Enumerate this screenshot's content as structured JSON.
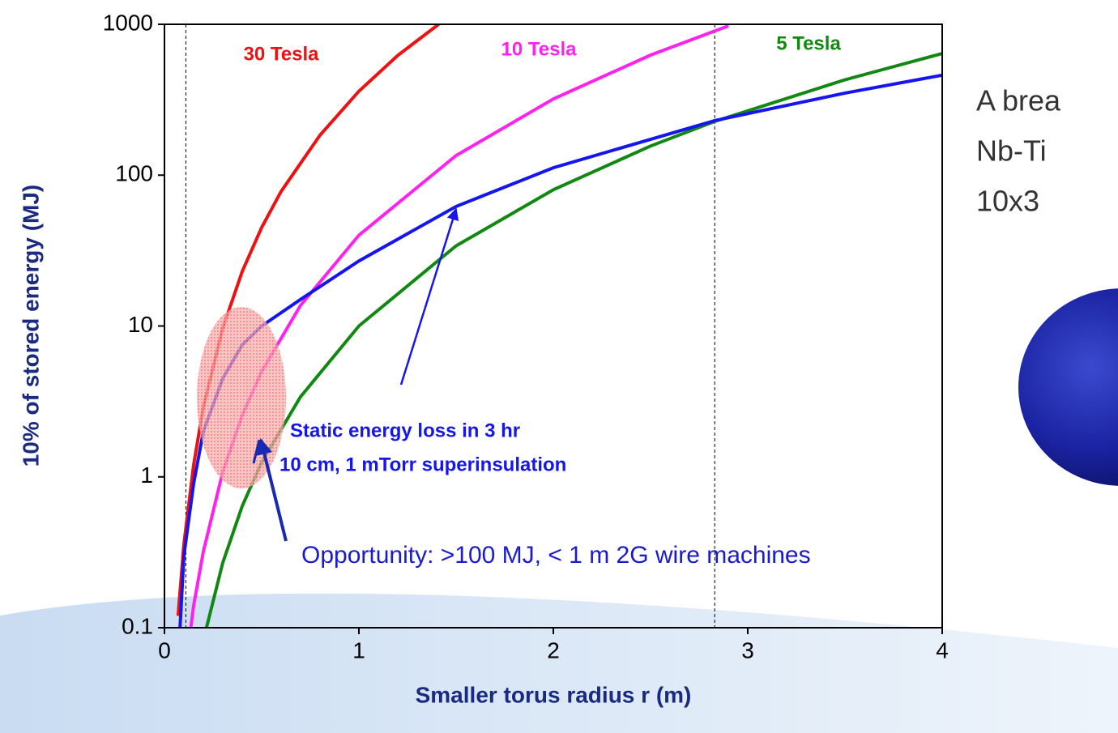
{
  "chart_data": {
    "type": "line",
    "x_label": "Smaller torus radius r (m)",
    "y_label": "10% of stored energy (MJ)",
    "log_y": true,
    "xlim": [
      0,
      4
    ],
    "xticks": [
      0,
      1,
      2,
      3,
      4
    ],
    "ylim": [
      0.1,
      1000
    ],
    "yticks": [
      0.1,
      1,
      10,
      100,
      1000
    ],
    "vlines": [
      0.11,
      2.83
    ],
    "series": [
      {
        "name": "30 Tesla",
        "color": "#ee1111",
        "x": [
          0.07,
          0.1,
          0.15,
          0.2,
          0.3,
          0.4,
          0.5,
          0.6,
          0.8,
          1,
          1.2,
          1.41
        ],
        "values": [
          0.12,
          0.36,
          1.2,
          2.9,
          9.7,
          23,
          45,
          78,
          184,
          360,
          622,
          1000
        ]
      },
      {
        "name": "10 Tesla",
        "color": "#ff22ee",
        "x": [
          0.13,
          0.15,
          0.2,
          0.3,
          0.4,
          0.5,
          0.7,
          1,
          1.5,
          2,
          2.5,
          2.9
        ],
        "values": [
          0.088,
          0.14,
          0.32,
          1.08,
          2.56,
          5,
          13.7,
          40,
          135,
          320,
          625,
          976
        ]
      },
      {
        "name": "5 Tesla",
        "color": "#118811",
        "x": [
          0.21,
          0.3,
          0.4,
          0.5,
          0.7,
          1,
          1.5,
          2,
          2.5,
          2.83,
          3.5,
          4
        ],
        "values": [
          0.093,
          0.27,
          0.64,
          1.25,
          3.4,
          10,
          34,
          80,
          156,
          227,
          429,
          640
        ]
      },
      {
        "name": "Static energy loss",
        "color": "#1515ee",
        "x": [
          0.08,
          0.1,
          0.15,
          0.2,
          0.3,
          0.4,
          0.5,
          0.7,
          1,
          1.5,
          2,
          2.83,
          3.5,
          4
        ],
        "values": [
          0.1,
          0.3,
          0.9,
          2,
          4.5,
          7.5,
          10,
          15,
          27,
          62,
          112,
          230,
          350,
          460
        ]
      }
    ],
    "annotations": {
      "static_line1": "Static energy loss in 3 hr",
      "static_line2": "10 cm, 1 mTorr superinsulation",
      "opportunity": "Opportunity: >100 MJ, < 1 m 2G wire machines"
    }
  },
  "side_text": [
    "A brea",
    "Nb-Ti",
    "10x3"
  ]
}
